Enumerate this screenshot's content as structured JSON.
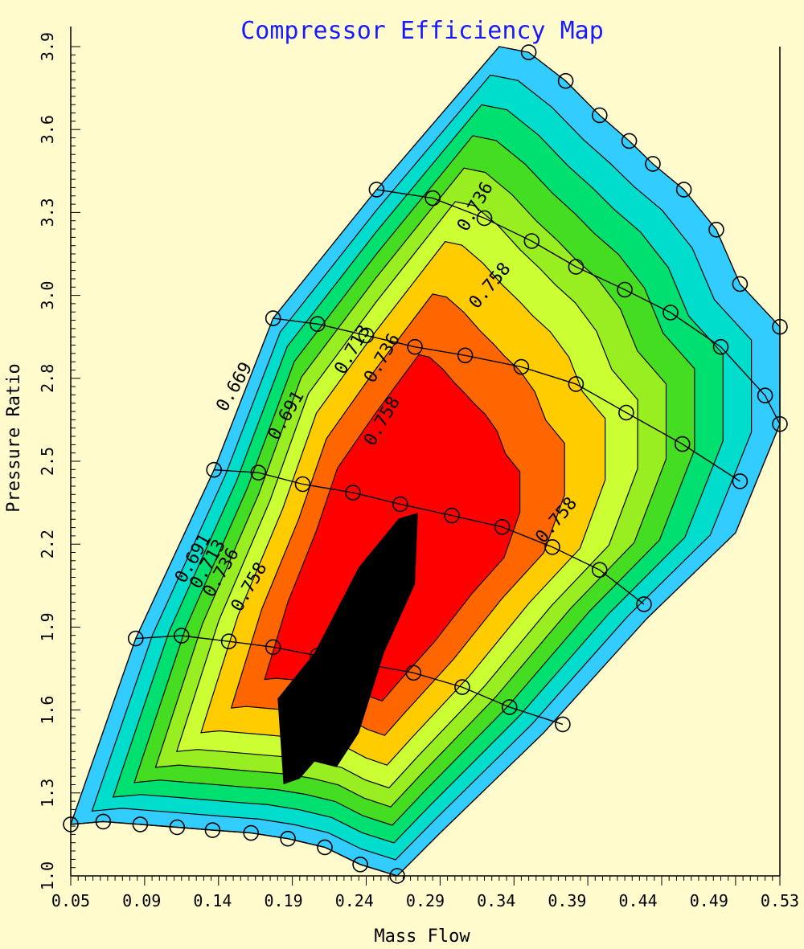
{
  "chart_data": {
    "type": "contour",
    "title": "Compressor Efficiency Map",
    "xlabel": "Mass Flow",
    "ylabel": "Pressure Ratio",
    "xlim": [
      0.05,
      0.53
    ],
    "ylim": [
      1.0,
      3.9
    ],
    "x_ticks": [
      "0.05",
      "0.09",
      "0.14",
      "0.19",
      "0.24",
      "0.29",
      "0.34",
      "0.39",
      "0.44",
      "0.49",
      "0.53"
    ],
    "y_ticks": [
      "1.0",
      "1.3",
      "1.6",
      "1.9",
      "2.2",
      "2.5",
      "2.8",
      "3.0",
      "3.3",
      "3.6",
      "3.9"
    ],
    "colors": {
      "background": "#fffbcc",
      "bands": [
        "#33ccff",
        "#00ddcc",
        "#00e070",
        "#44dd22",
        "#99ee22",
        "#ccff33",
        "#ffcc00",
        "#ff6600",
        "#ff0000",
        "#000000"
      ],
      "title": "#1a1aff"
    },
    "contour_labels": [
      {
        "text": "0.669",
        "x": 0.155,
        "y": 2.62,
        "angle": -60
      },
      {
        "text": "0.691",
        "x": 0.19,
        "y": 2.52,
        "angle": -60
      },
      {
        "text": "0.713",
        "x": 0.235,
        "y": 2.75,
        "angle": -60
      },
      {
        "text": "0.736",
        "x": 0.255,
        "y": 2.72,
        "angle": -60
      },
      {
        "text": "0.758",
        "x": 0.255,
        "y": 2.5,
        "angle": -60
      },
      {
        "text": "0.736",
        "x": 0.318,
        "y": 3.25,
        "angle": -60
      },
      {
        "text": "0.758",
        "x": 0.325,
        "y": 2.98,
        "angle": -50
      },
      {
        "text": "0.691",
        "x": 0.127,
        "y": 2.02,
        "angle": -60
      },
      {
        "text": "0.713",
        "x": 0.137,
        "y": 2.0,
        "angle": -60
      },
      {
        "text": "0.736",
        "x": 0.146,
        "y": 1.97,
        "angle": -60
      },
      {
        "text": "0.758",
        "x": 0.165,
        "y": 1.92,
        "angle": -60
      },
      {
        "text": "0.758",
        "x": 0.37,
        "y": 2.16,
        "angle": -50
      }
    ],
    "speed_lines": [
      {
        "points": [
          [
            0.05,
            1.18
          ],
          [
            0.072,
            1.19
          ],
          [
            0.097,
            1.18
          ],
          [
            0.122,
            1.17
          ],
          [
            0.146,
            1.16
          ],
          [
            0.172,
            1.15
          ],
          [
            0.197,
            1.13
          ],
          [
            0.222,
            1.1
          ],
          [
            0.246,
            1.04
          ],
          [
            0.271,
            1.0
          ]
        ]
      },
      {
        "points": [
          [
            0.094,
            1.83
          ],
          [
            0.125,
            1.84
          ],
          [
            0.157,
            1.82
          ],
          [
            0.187,
            1.8
          ],
          [
            0.217,
            1.77
          ],
          [
            0.25,
            1.74
          ],
          [
            0.282,
            1.71
          ],
          [
            0.315,
            1.66
          ],
          [
            0.347,
            1.59
          ],
          [
            0.383,
            1.53
          ]
        ]
      },
      {
        "points": [
          [
            0.147,
            2.42
          ],
          [
            0.177,
            2.41
          ],
          [
            0.207,
            2.37
          ],
          [
            0.241,
            2.34
          ],
          [
            0.273,
            2.3
          ],
          [
            0.308,
            2.26
          ],
          [
            0.342,
            2.22
          ],
          [
            0.376,
            2.15
          ],
          [
            0.408,
            2.07
          ],
          [
            0.438,
            1.95
          ]
        ]
      },
      {
        "points": [
          [
            0.187,
            2.95
          ],
          [
            0.217,
            2.93
          ],
          [
            0.25,
            2.89
          ],
          [
            0.283,
            2.85
          ],
          [
            0.317,
            2.82
          ],
          [
            0.355,
            2.78
          ],
          [
            0.392,
            2.72
          ],
          [
            0.426,
            2.62
          ],
          [
            0.464,
            2.51
          ],
          [
            0.503,
            2.38
          ]
        ]
      },
      {
        "points": [
          [
            0.257,
            3.4
          ],
          [
            0.295,
            3.37
          ],
          [
            0.33,
            3.3
          ],
          [
            0.362,
            3.22
          ],
          [
            0.392,
            3.13
          ],
          [
            0.425,
            3.05
          ],
          [
            0.456,
            2.97
          ],
          [
            0.49,
            2.85
          ],
          [
            0.52,
            2.68
          ],
          [
            0.53,
            2.58
          ]
        ]
      }
    ],
    "surge_line": [
      [
        0.05,
        1.18
      ],
      [
        0.094,
        1.83
      ],
      [
        0.147,
        2.42
      ],
      [
        0.187,
        2.95
      ],
      [
        0.257,
        3.4
      ],
      [
        0.34,
        3.9
      ]
    ],
    "choke_line": [
      [
        0.34,
        3.9
      ],
      [
        0.36,
        3.88
      ],
      [
        0.385,
        3.78
      ],
      [
        0.408,
        3.66
      ],
      [
        0.428,
        3.57
      ],
      [
        0.444,
        3.49
      ],
      [
        0.465,
        3.4
      ],
      [
        0.487,
        3.26
      ],
      [
        0.503,
        3.07
      ],
      [
        0.53,
        2.92
      ],
      [
        0.53,
        2.58
      ]
    ]
  }
}
